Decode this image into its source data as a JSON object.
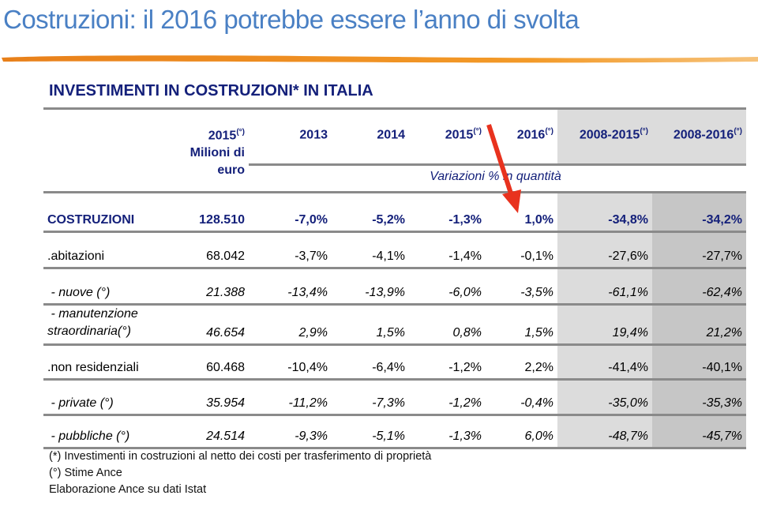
{
  "title": "Costruzioni: il 2016 potrebbe essere l’anno di svolta",
  "subtitle": "INVESTIMENTI IN COSTRUZIONI* IN ITALIA",
  "header": {
    "col1": "2015",
    "col1_sup": "(°)",
    "col1_unit": "Milioni di euro",
    "years": [
      {
        "label": "2013",
        "sup": ""
      },
      {
        "label": "2014",
        "sup": ""
      },
      {
        "label": "2015",
        "sup": "(°)"
      },
      {
        "label": "2016",
        "sup": "(°)"
      },
      {
        "label": "2008-2015",
        "sup": "(°)"
      },
      {
        "label": "2008-2016",
        "sup": "(°)"
      }
    ],
    "variation_label": "Variazioni % in quantità"
  },
  "rows": [
    {
      "label": "COSTRUZIONI",
      "values": [
        "128.510",
        "-7,0%",
        "-5,2%",
        "-1,3%",
        "1,0%",
        "-34,8%",
        "-34,2%"
      ]
    },
    {
      "label": ".abitazioni",
      "values": [
        "68.042",
        "-3,7%",
        "-4,1%",
        "-1,4%",
        "-0,1%",
        "-27,6%",
        "-27,7%"
      ]
    },
    {
      "label": " - nuove (°)",
      "values": [
        "21.388",
        "-13,4%",
        "-13,9%",
        "-6,0%",
        "-3,5%",
        "-61,1%",
        "-62,4%"
      ]
    },
    {
      "label_line1": " - manutenzione",
      "label_line2": "straordinaria(°)",
      "values": [
        "46.654",
        "2,9%",
        "1,5%",
        "0,8%",
        "1,5%",
        "19,4%",
        "21,2%"
      ]
    },
    {
      "label": ".non residenziali",
      "values": [
        "60.468",
        "-10,4%",
        "-6,4%",
        "-1,2%",
        "2,2%",
        "-41,4%",
        "-40,1%"
      ]
    },
    {
      "label": " - private (°)",
      "values": [
        "35.954",
        "-11,2%",
        "-7,3%",
        "-1,2%",
        "-0,4%",
        "-35,0%",
        "-35,3%"
      ]
    },
    {
      "label": " - pubbliche (°)",
      "values": [
        "24.514",
        "-9,3%",
        "-5,1%",
        "-1,3%",
        "6,0%",
        "-48,7%",
        "-45,7%"
      ]
    }
  ],
  "notes": [
    "(*) Investimenti in costruzioni al netto dei costi per trasferimento di proprietà",
    "(°) Stime Ance",
    "Elaborazione Ance su dati Istat"
  ],
  "colors": {
    "title": "#4a80c4",
    "table_header": "#14207a",
    "arrow": "#e8321e",
    "brush": "#f0901e"
  }
}
